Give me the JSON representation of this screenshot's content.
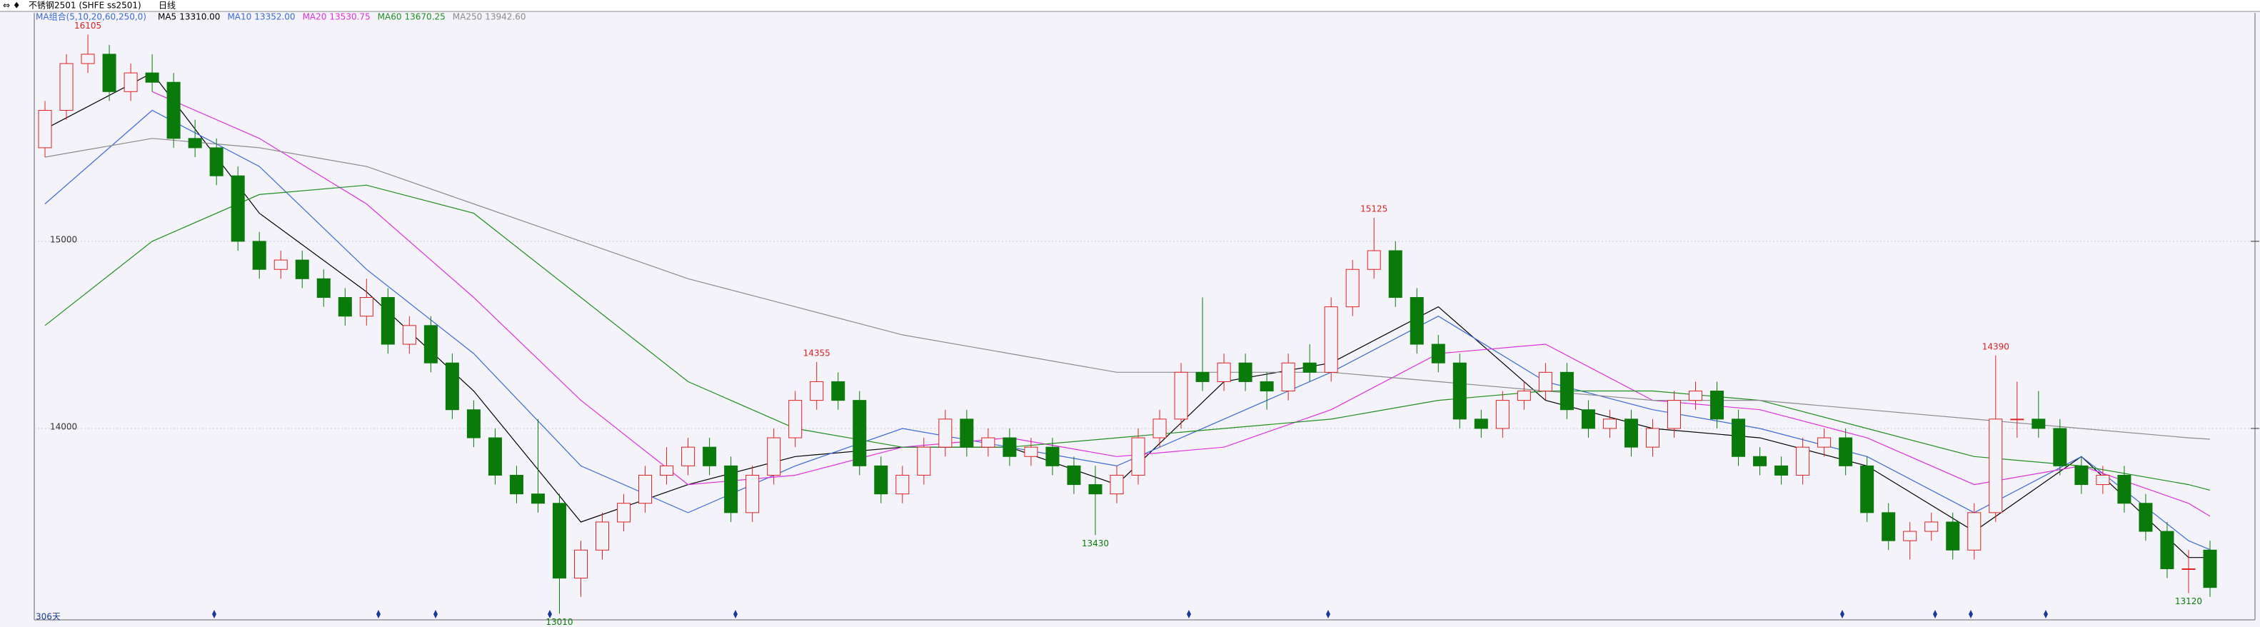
{
  "chart_data": {
    "type": "candlestick",
    "symbol": "不锈钢2501 (SHFE ss2501)",
    "period": "日线",
    "indicator": "MA组合(5,10,20,60,250,0)",
    "day_count": "306天",
    "ylim": [
      12977,
      16221
    ],
    "yticks": [
      14000,
      15000
    ],
    "grid": true,
    "up_color": "#e02020",
    "down_color": "#0a7a0a",
    "candles": [
      [
        15500,
        15750,
        15450,
        15700
      ],
      [
        15700,
        16000,
        15650,
        15950
      ],
      [
        15950,
        16105,
        15900,
        16000
      ],
      [
        16000,
        16050,
        15750,
        15800
      ],
      [
        15800,
        15950,
        15750,
        15900
      ],
      [
        15900,
        16000,
        15800,
        15850
      ],
      [
        15850,
        15900,
        15500,
        15550
      ],
      [
        15550,
        15650,
        15450,
        15500
      ],
      [
        15500,
        15550,
        15300,
        15350
      ],
      [
        15350,
        15400,
        14950,
        15000
      ],
      [
        15000,
        15050,
        14800,
        14850
      ],
      [
        14850,
        14950,
        14800,
        14900
      ],
      [
        14900,
        14950,
        14750,
        14800
      ],
      [
        14800,
        14850,
        14650,
        14700
      ],
      [
        14700,
        14750,
        14550,
        14600
      ],
      [
        14600,
        14800,
        14550,
        14700
      ],
      [
        14700,
        14750,
        14400,
        14450
      ],
      [
        14450,
        14600,
        14400,
        14550
      ],
      [
        14550,
        14600,
        14300,
        14350
      ],
      [
        14350,
        14400,
        14050,
        14100
      ],
      [
        14100,
        14150,
        13900,
        13950
      ],
      [
        13950,
        14000,
        13700,
        13750
      ],
      [
        13750,
        13800,
        13600,
        13650
      ],
      [
        13650,
        14050,
        13550,
        13600
      ],
      [
        13600,
        13650,
        13010,
        13200
      ],
      [
        13200,
        13400,
        13100,
        13350
      ],
      [
        13350,
        13550,
        13300,
        13500
      ],
      [
        13500,
        13650,
        13450,
        13600
      ],
      [
        13600,
        13800,
        13550,
        13750
      ],
      [
        13750,
        13900,
        13700,
        13800
      ],
      [
        13800,
        13950,
        13750,
        13900
      ],
      [
        13900,
        13950,
        13750,
        13800
      ],
      [
        13800,
        13850,
        13500,
        13550
      ],
      [
        13550,
        13800,
        13500,
        13750
      ],
      [
        13750,
        14000,
        13700,
        13950
      ],
      [
        13950,
        14200,
        13900,
        14150
      ],
      [
        14150,
        14355,
        14100,
        14250
      ],
      [
        14250,
        14300,
        14100,
        14150
      ],
      [
        14150,
        14200,
        13750,
        13800
      ],
      [
        13800,
        13850,
        13600,
        13650
      ],
      [
        13650,
        13800,
        13600,
        13750
      ],
      [
        13750,
        13950,
        13700,
        13900
      ],
      [
        13900,
        14100,
        13850,
        14050
      ],
      [
        14050,
        14100,
        13850,
        13900
      ],
      [
        13900,
        14000,
        13850,
        13950
      ],
      [
        13950,
        14000,
        13800,
        13850
      ],
      [
        13850,
        13950,
        13800,
        13900
      ],
      [
        13900,
        13950,
        13750,
        13800
      ],
      [
        13800,
        13850,
        13650,
        13700
      ],
      [
        13700,
        13800,
        13430,
        13650
      ],
      [
        13650,
        13800,
        13600,
        13750
      ],
      [
        13750,
        14000,
        13700,
        13950
      ],
      [
        13950,
        14100,
        13900,
        14050
      ],
      [
        14050,
        14350,
        14000,
        14300
      ],
      [
        14300,
        14700,
        14200,
        14250
      ],
      [
        14250,
        14400,
        14200,
        14350
      ],
      [
        14350,
        14400,
        14200,
        14250
      ],
      [
        14250,
        14300,
        14100,
        14200
      ],
      [
        14200,
        14400,
        14150,
        14350
      ],
      [
        14350,
        14450,
        14250,
        14300
      ],
      [
        14300,
        14700,
        14250,
        14650
      ],
      [
        14650,
        14900,
        14600,
        14850
      ],
      [
        14850,
        15125,
        14800,
        14950
      ],
      [
        14950,
        15000,
        14650,
        14700
      ],
      [
        14700,
        14750,
        14400,
        14450
      ],
      [
        14450,
        14500,
        14300,
        14350
      ],
      [
        14350,
        14400,
        14000,
        14050
      ],
      [
        14050,
        14100,
        13950,
        14000
      ],
      [
        14000,
        14200,
        13950,
        14150
      ],
      [
        14150,
        14250,
        14100,
        14200
      ],
      [
        14200,
        14350,
        14150,
        14300
      ],
      [
        14300,
        14350,
        14050,
        14100
      ],
      [
        14100,
        14150,
        13950,
        14000
      ],
      [
        14000,
        14100,
        13950,
        14050
      ],
      [
        14050,
        14100,
        13850,
        13900
      ],
      [
        13900,
        14050,
        13850,
        14000
      ],
      [
        14000,
        14200,
        13950,
        14150
      ],
      [
        14150,
        14250,
        14100,
        14200
      ],
      [
        14200,
        14250,
        14000,
        14050
      ],
      [
        14050,
        14100,
        13800,
        13850
      ],
      [
        13850,
        13900,
        13750,
        13800
      ],
      [
        13800,
        13850,
        13700,
        13750
      ],
      [
        13750,
        13950,
        13700,
        13900
      ],
      [
        13900,
        14000,
        13850,
        13950
      ],
      [
        13950,
        14000,
        13750,
        13800
      ],
      [
        13800,
        13850,
        13500,
        13550
      ],
      [
        13550,
        13600,
        13350,
        13400
      ],
      [
        13400,
        13500,
        13300,
        13450
      ],
      [
        13450,
        13550,
        13400,
        13500
      ],
      [
        13500,
        13550,
        13300,
        13350
      ],
      [
        13350,
        13600,
        13300,
        13550
      ],
      [
        13550,
        14390,
        13500,
        14050
      ],
      [
        14050,
        14250,
        13950,
        14050
      ],
      [
        14050,
        14200,
        13950,
        14000
      ],
      [
        14000,
        14050,
        13750,
        13800
      ],
      [
        13800,
        13850,
        13650,
        13700
      ],
      [
        13700,
        13800,
        13650,
        13750
      ],
      [
        13750,
        13800,
        13550,
        13600
      ],
      [
        13600,
        13650,
        13400,
        13450
      ],
      [
        13450,
        13500,
        13200,
        13250
      ],
      [
        13250,
        13350,
        13120,
        13250
      ],
      [
        13350,
        13400,
        13100,
        13150
      ]
    ],
    "ma_x": [
      0,
      5,
      10,
      15,
      20,
      25,
      30,
      35,
      40,
      45,
      50,
      55,
      60,
      65,
      70,
      75,
      80,
      85,
      90,
      95,
      100,
      101
    ],
    "series": [
      {
        "name": "MA5",
        "color": "#000000",
        "last_label": "13310.00",
        "values": [
          15600,
          15900,
          15150,
          14730,
          14200,
          13500,
          13700,
          13850,
          13900,
          13900,
          13700,
          14250,
          14350,
          14650,
          14150,
          14000,
          13950,
          13800,
          13450,
          13850,
          13310,
          13310
        ]
      },
      {
        "name": "MA10",
        "color": "#3a6ad8",
        "last_label": "13352.00",
        "values": [
          15200,
          15700,
          15400,
          14850,
          14400,
          13800,
          13550,
          13800,
          14000,
          13900,
          13800,
          14050,
          14300,
          14600,
          14250,
          14100,
          14000,
          13850,
          13550,
          13850,
          13400,
          13352
        ]
      },
      {
        "name": "MA20",
        "color": "#e030e0",
        "last_label": "13530.75",
        "values": [
          null,
          15800,
          15550,
          15200,
          14700,
          14150,
          13700,
          13750,
          13900,
          13950,
          13850,
          13900,
          14100,
          14400,
          14450,
          14150,
          14100,
          13950,
          13700,
          13800,
          13600,
          13530.75
        ]
      },
      {
        "name": "MA60",
        "color": "#1f8f1f",
        "last_label": "13670.25",
        "values": [
          14550,
          15000,
          15250,
          15300,
          15150,
          14700,
          14250,
          14000,
          13900,
          13900,
          13950,
          14000,
          14050,
          14150,
          14200,
          14200,
          14150,
          14000,
          13850,
          13800,
          13700,
          13670.25
        ]
      },
      {
        "name": "MA250",
        "color": "#8c8c8c",
        "last_label": "13942.60",
        "values": [
          15450,
          15550,
          15500,
          15400,
          15200,
          15000,
          14800,
          14650,
          14500,
          14400,
          14300,
          14300,
          14300,
          14250,
          14200,
          14150,
          14150,
          14100,
          14050,
          14000,
          13950,
          13942.6
        ]
      }
    ]
  }
}
